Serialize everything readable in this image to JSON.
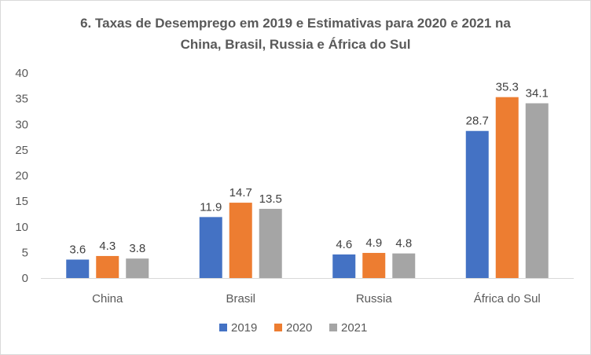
{
  "chart_data": {
    "type": "bar",
    "title_lines": [
      "6. Taxas de Desemprego em 2019 e Estimativas para 2020 e 2021 na",
      "China, Brasil, Russia e África do Sul"
    ],
    "categories": [
      "China",
      "Brasil",
      "Russia",
      "África do Sul"
    ],
    "series": [
      {
        "name": "2019",
        "color": "#4472c4",
        "values": [
          3.6,
          11.9,
          4.6,
          28.7
        ]
      },
      {
        "name": "2020",
        "color": "#ed7d31",
        "values": [
          4.3,
          14.7,
          4.9,
          35.3
        ]
      },
      {
        "name": "2021",
        "color": "#a5a5a5",
        "values": [
          3.8,
          13.5,
          4.8,
          34.1
        ]
      }
    ],
    "ylim": [
      0,
      40
    ],
    "yticks": [
      0,
      5,
      10,
      15,
      20,
      25,
      30,
      35,
      40
    ],
    "xlabel": "",
    "ylabel": "",
    "grid": false,
    "legend": "bottom"
  }
}
